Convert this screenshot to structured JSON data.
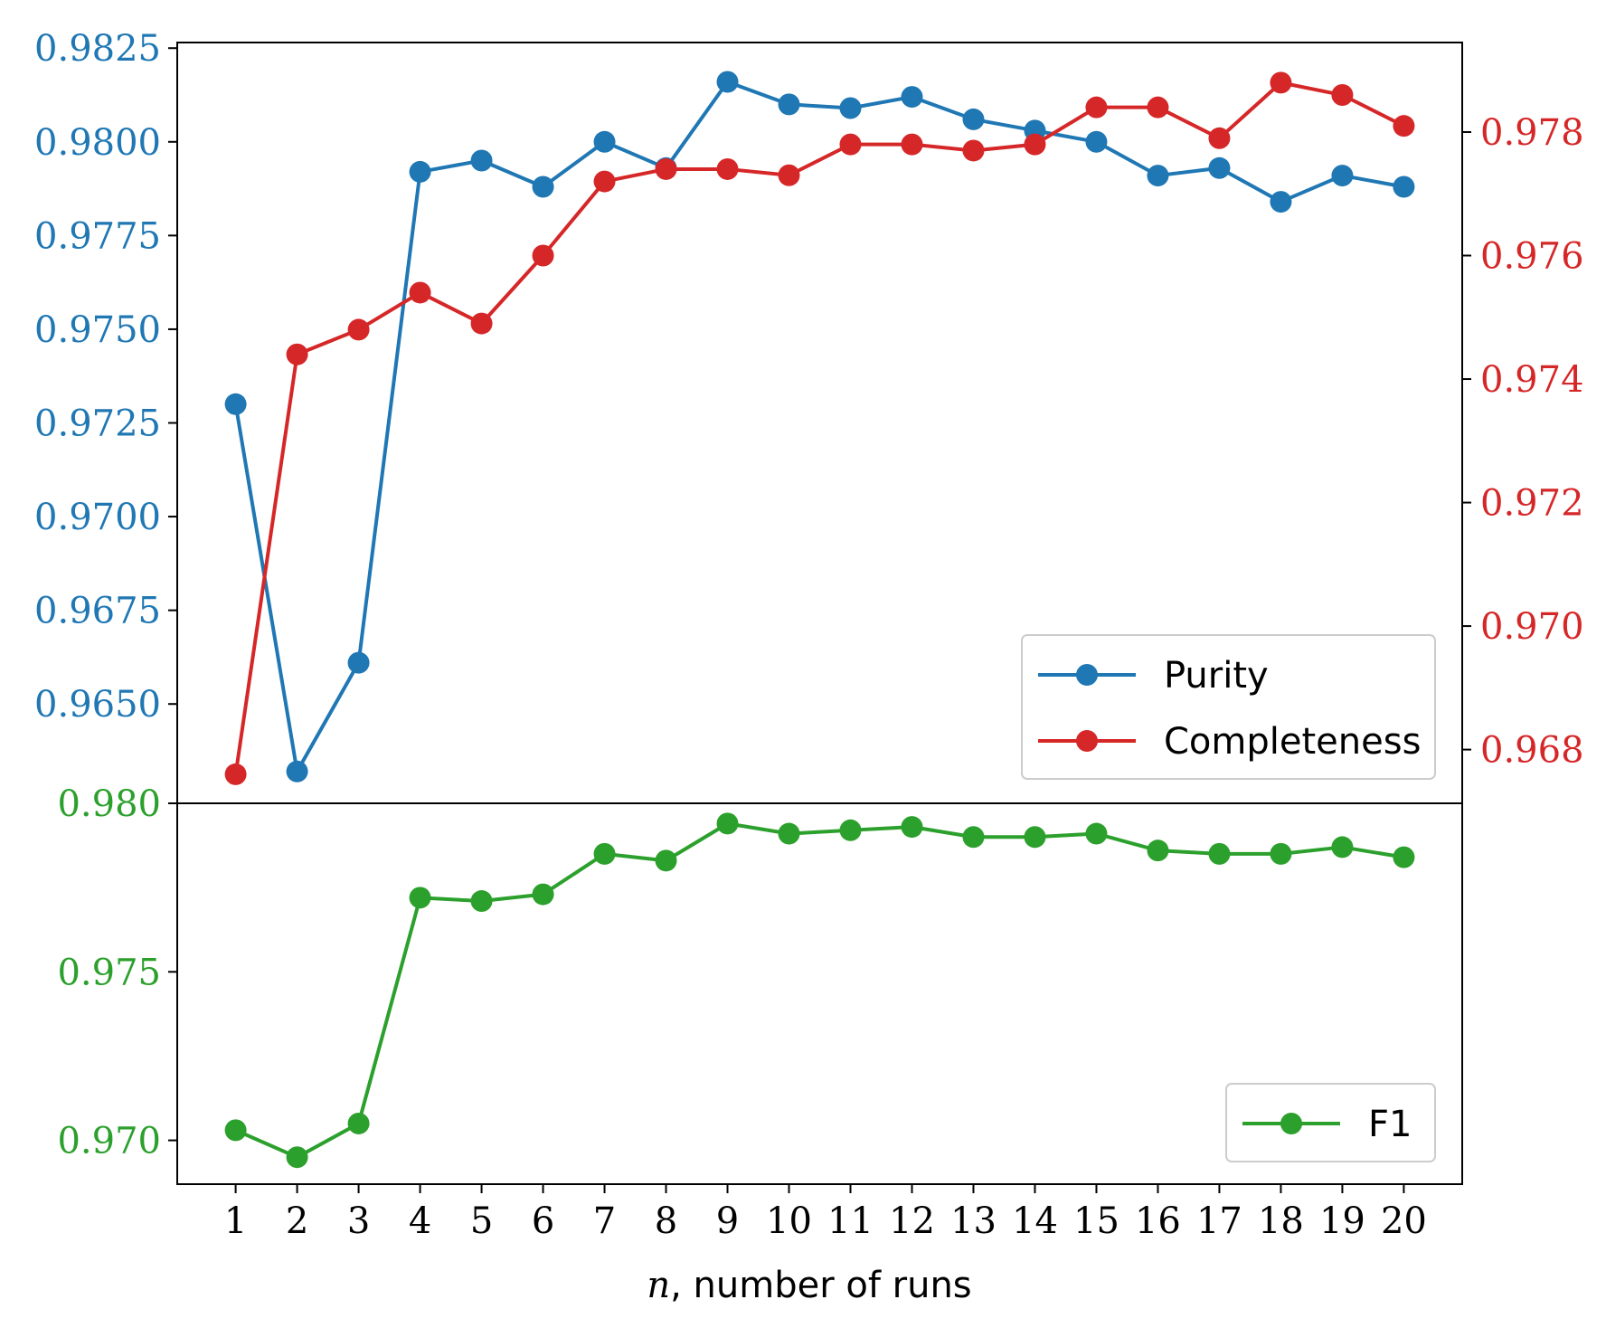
{
  "colors": {
    "purity": "#1f77b4",
    "completeness": "#d62728",
    "f1": "#2ca02c",
    "axis": "#000000",
    "legend_border": "#cccccc"
  },
  "xlabel": {
    "var": "n",
    "rest": ", number of runs"
  },
  "chart_data": [
    {
      "type": "line",
      "panel": "top",
      "x": [
        1,
        2,
        3,
        4,
        5,
        6,
        7,
        8,
        9,
        10,
        11,
        12,
        13,
        14,
        15,
        16,
        17,
        18,
        19,
        20
      ],
      "x_tick_labels": [
        "1",
        "2",
        "3",
        "4",
        "5",
        "6",
        "7",
        "8",
        "9",
        "10",
        "11",
        "12",
        "13",
        "14",
        "15",
        "16",
        "17",
        "18",
        "19",
        "20"
      ],
      "series": [
        {
          "name": "Purity",
          "axis": "left",
          "color": "#1f77b4",
          "marker": "circle",
          "values": [
            0.973,
            0.9632,
            0.9661,
            0.9792,
            0.9795,
            0.9788,
            0.98,
            0.9793,
            0.9816,
            0.981,
            0.9809,
            0.9812,
            0.9806,
            0.9803,
            0.98,
            0.9791,
            0.9793,
            0.9784,
            0.9791,
            0.9788
          ]
        },
        {
          "name": "Completeness",
          "axis": "right",
          "color": "#d62728",
          "marker": "circle",
          "values": [
            0.9676,
            0.9744,
            0.9748,
            0.9754,
            0.9749,
            0.976,
            0.9772,
            0.9774,
            0.9774,
            0.9773,
            0.9778,
            0.9778,
            0.9777,
            0.9778,
            0.9784,
            0.9784,
            0.9779,
            0.9788,
            0.9786,
            0.9781
          ]
        }
      ],
      "ylim_left": [
        0.96235,
        0.98265
      ],
      "ylim_right": [
        0.96713,
        0.97945
      ],
      "left_ticks": [
        "0.9650",
        "0.9675",
        "0.9700",
        "0.9725",
        "0.9750",
        "0.9775",
        "0.9800",
        "0.9825"
      ],
      "right_ticks": [
        "0.968",
        "0.970",
        "0.972",
        "0.974",
        "0.976",
        "0.978"
      ],
      "grid": false,
      "legend_position": "lower-right"
    },
    {
      "type": "line",
      "panel": "bottom",
      "x": [
        1,
        2,
        3,
        4,
        5,
        6,
        7,
        8,
        9,
        10,
        11,
        12,
        13,
        14,
        15,
        16,
        17,
        18,
        19,
        20
      ],
      "series": [
        {
          "name": "F1",
          "axis": "left",
          "color": "#2ca02c",
          "marker": "circle",
          "values": [
            0.9703,
            0.9695,
            0.9705,
            0.9772,
            0.9771,
            0.9773,
            0.9785,
            0.9783,
            0.9794,
            0.9791,
            0.9792,
            0.9793,
            0.979,
            0.979,
            0.9791,
            0.9786,
            0.9785,
            0.9785,
            0.9787,
            0.9784
          ]
        }
      ],
      "ylim": [
        0.9687,
        0.98
      ],
      "left_ticks": [
        "0.970",
        "0.975",
        "0.980"
      ],
      "grid": false,
      "legend_position": "lower-right"
    }
  ]
}
